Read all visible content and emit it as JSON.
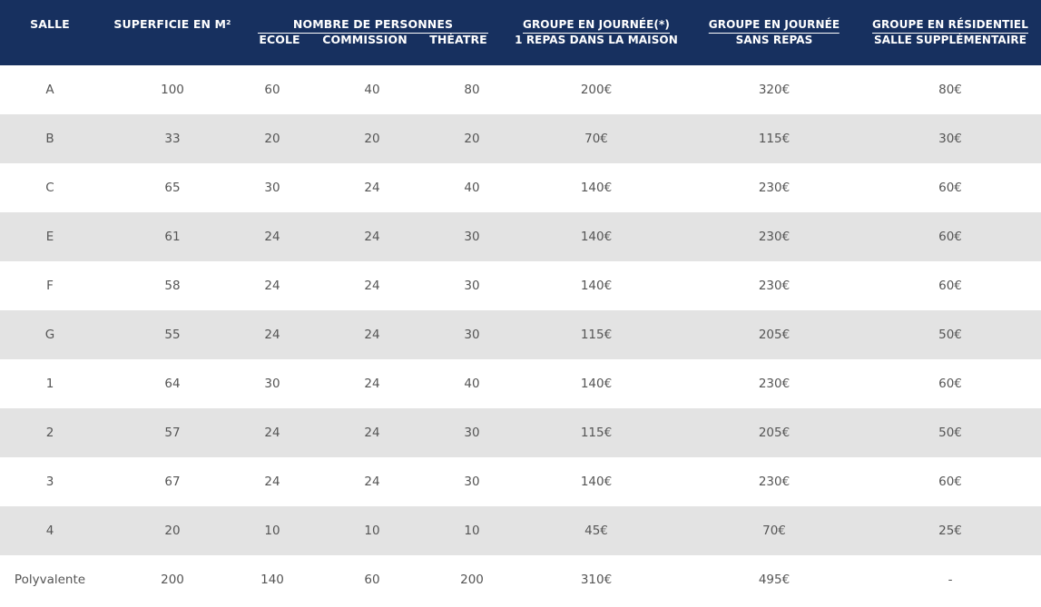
{
  "table": {
    "headers": {
      "salle": "SALLE",
      "superficie": "SUPERFICIE EN M²",
      "nombre_personnes": "NOMBRE DE PERSONNES",
      "ecole": "ECOLE",
      "commission": "COMMISSION",
      "theatre": "THÉATRE",
      "groupe_journee_repas_line1": "GROUPE EN JOURNÉE(*)",
      "groupe_journee_repas_line2": "1 REPAS DANS LA MAISON",
      "groupe_journee_sans_line1": "GROUPE EN JOURNÉE",
      "groupe_journee_sans_line2": "SANS REPAS",
      "groupe_residentiel_line1": "GROUPE EN RÉSIDENTIEL",
      "groupe_residentiel_line2": "SALLE SUPPLÉMENTAIRE"
    },
    "rows": [
      [
        "A",
        "100",
        "60",
        "40",
        "80",
        "200€",
        "320€",
        "80€"
      ],
      [
        "B",
        "33",
        "20",
        "20",
        "20",
        "70€",
        "115€",
        "30€"
      ],
      [
        "C",
        "65",
        "30",
        "24",
        "40",
        "140€",
        "230€",
        "60€"
      ],
      [
        "E",
        "61",
        "24",
        "24",
        "30",
        "140€",
        "230€",
        "60€"
      ],
      [
        "F",
        "58",
        "24",
        "24",
        "30",
        "140€",
        "230€",
        "60€"
      ],
      [
        "G",
        "55",
        "24",
        "24",
        "30",
        "115€",
        "205€",
        "50€"
      ],
      [
        "1",
        "64",
        "30",
        "24",
        "40",
        "140€",
        "230€",
        "60€"
      ],
      [
        "2",
        "57",
        "24",
        "24",
        "30",
        "115€",
        "205€",
        "50€"
      ],
      [
        "3",
        "67",
        "24",
        "24",
        "30",
        "140€",
        "230€",
        "60€"
      ],
      [
        "4",
        "20",
        "10",
        "10",
        "10",
        "45€",
        "70€",
        "25€"
      ],
      [
        "Polyvalente",
        "200",
        "140",
        "60",
        "200",
        "310€",
        "495€",
        "-"
      ]
    ]
  },
  "colors": {
    "header_bg": "#17305f",
    "header_text": "#ffffff",
    "row_alt_bg": "#e3e3e3",
    "cell_text": "#555555"
  }
}
